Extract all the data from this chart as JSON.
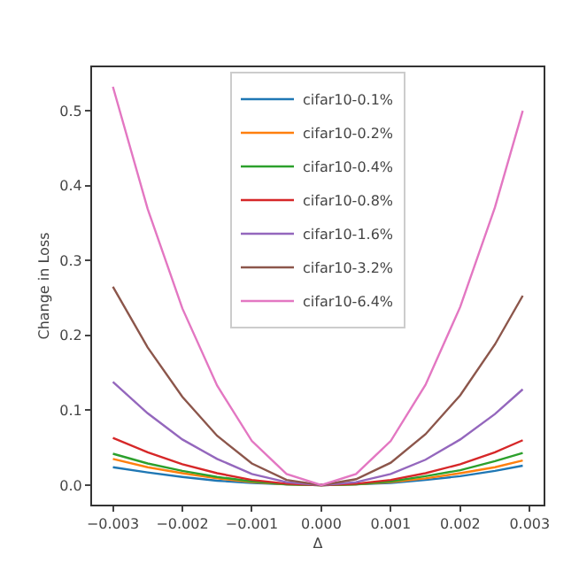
{
  "chart_data": {
    "type": "line",
    "xlabel": "Δ",
    "ylabel": "Change in Loss",
    "x": [
      -0.003,
      -0.0025,
      -0.002,
      -0.0015,
      -0.001,
      -0.0005,
      0,
      0.0005,
      0.001,
      0.0015,
      0.002,
      0.0025,
      0.0029
    ],
    "series": [
      {
        "name": "cifar10-0.1%",
        "color": "#1f77b4",
        "values": [
          0.024,
          0.017,
          0.011,
          0.006,
          0.003,
          0.001,
          0,
          0.001,
          0.003,
          0.007,
          0.012,
          0.019,
          0.026
        ]
      },
      {
        "name": "cifar10-0.2%",
        "color": "#ff7f0e",
        "values": [
          0.035,
          0.024,
          0.016,
          0.009,
          0.004,
          0.001,
          0,
          0.001,
          0.004,
          0.009,
          0.016,
          0.024,
          0.033
        ]
      },
      {
        "name": "cifar10-0.4%",
        "color": "#2ca02c",
        "values": [
          0.042,
          0.029,
          0.019,
          0.011,
          0.005,
          0.001,
          0,
          0.001,
          0.005,
          0.012,
          0.02,
          0.032,
          0.043
        ]
      },
      {
        "name": "cifar10-0.8%",
        "color": "#d62728",
        "values": [
          0.063,
          0.044,
          0.028,
          0.016,
          0.007,
          0.002,
          0,
          0.002,
          0.007,
          0.016,
          0.028,
          0.044,
          0.06
        ]
      },
      {
        "name": "cifar10-1.6%",
        "color": "#9467bd",
        "values": [
          0.138,
          0.096,
          0.061,
          0.035,
          0.015,
          0.004,
          0,
          0.004,
          0.015,
          0.034,
          0.061,
          0.095,
          0.128
        ]
      },
      {
        "name": "cifar10-3.2%",
        "color": "#8c564b",
        "values": [
          0.265,
          0.184,
          0.118,
          0.066,
          0.029,
          0.007,
          0,
          0.008,
          0.03,
          0.068,
          0.12,
          0.188,
          0.253
        ]
      },
      {
        "name": "cifar10-6.4%",
        "color": "#e377c2",
        "values": [
          0.532,
          0.369,
          0.236,
          0.133,
          0.059,
          0.015,
          0,
          0.015,
          0.059,
          0.134,
          0.238,
          0.371,
          0.5
        ]
      }
    ],
    "xlim": [
      -0.0033,
      0.0032
    ],
    "ylim": [
      -0.026,
      0.558
    ],
    "xticks": [
      {
        "value": -0.003,
        "label": "−0.003"
      },
      {
        "value": -0.002,
        "label": "−0.002"
      },
      {
        "value": -0.001,
        "label": "−0.001"
      },
      {
        "value": 0,
        "label": "0.000"
      },
      {
        "value": 0.001,
        "label": "0.001"
      },
      {
        "value": 0.002,
        "label": "0.002"
      },
      {
        "value": 0.003,
        "label": "0.003"
      }
    ],
    "yticks": [
      {
        "value": 0,
        "label": "0.0"
      },
      0.1,
      0.2,
      0.3,
      0.4,
      0.5
    ],
    "grid": false,
    "legend": "top",
    "marker": "none",
    "line_style": "solid"
  }
}
